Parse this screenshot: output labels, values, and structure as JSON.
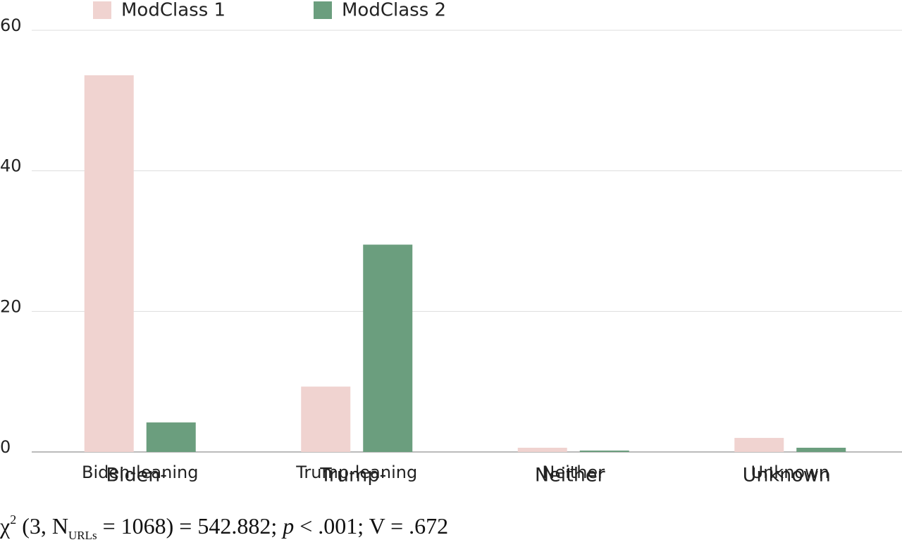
{
  "chart_data": {
    "type": "bar",
    "categories": [
      "Biden-leaning",
      "Trump-leaning",
      "Neither",
      "Unknown"
    ],
    "category_labels_overlay": [
      "Biden-",
      "Trump-",
      "Neither",
      "Unknown"
    ],
    "series": [
      {
        "name": "ModClass 1",
        "color": "#f0d3d0",
        "values": [
          53.6,
          9.3,
          0.6,
          2.0
        ]
      },
      {
        "name": "ModClass 2",
        "color": "#6b9e7e",
        "values": [
          4.2,
          29.5,
          0.2,
          0.6
        ]
      }
    ],
    "ylim": [
      0,
      60
    ],
    "yticks": [
      0,
      20,
      40,
      60
    ],
    "grid": true,
    "footnote": {
      "chi": "χ",
      "sup": "2",
      "a": " (3, N",
      "sub": "URLs",
      "b": " = 1068) = 542.882; ",
      "p": "p",
      "c": " < .001; V = .672"
    }
  }
}
